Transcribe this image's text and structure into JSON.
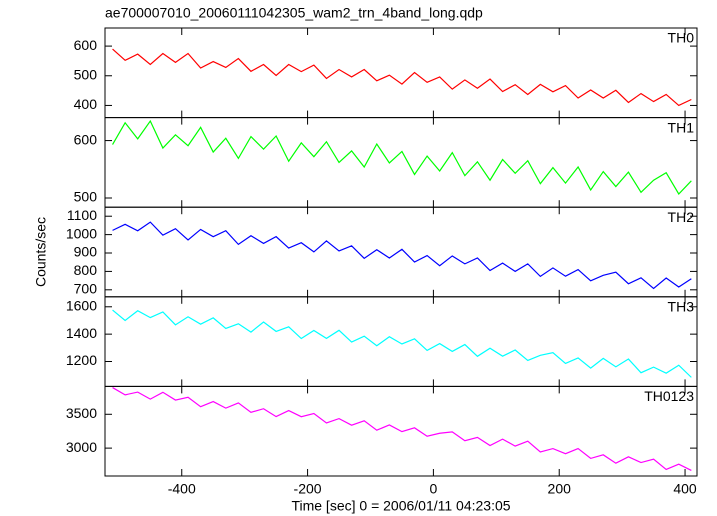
{
  "title": "ae700007010_20060111042305_wam2_trn_4band_long.qdp",
  "ylabel": "Counts/sec",
  "xlabel": "Time [sec] 0 = 2006/01/11 04:23:05",
  "chart_data": [
    {
      "type": "line",
      "label": "TH0",
      "color": "#ff0000",
      "x": [
        -510,
        -490,
        -470,
        -450,
        -430,
        -410,
        -390,
        -370,
        -350,
        -330,
        -310,
        -290,
        -270,
        -250,
        -230,
        -210,
        -190,
        -170,
        -150,
        -130,
        -110,
        -90,
        -70,
        -50,
        -30,
        -10,
        10,
        30,
        50,
        70,
        90,
        110,
        130,
        150,
        170,
        190,
        210,
        230,
        250,
        270,
        290,
        310,
        330,
        350,
        370,
        390,
        410
      ],
      "values": [
        590,
        552,
        573,
        538,
        575,
        545,
        575,
        526,
        548,
        528,
        558,
        515,
        538,
        501,
        538,
        514,
        536,
        491,
        521,
        496,
        521,
        483,
        502,
        472,
        511,
        478,
        496,
        455,
        486,
        458,
        489,
        447,
        470,
        437,
        471,
        446,
        467,
        425,
        452,
        425,
        451,
        410,
        440,
        413,
        437,
        400,
        420
      ],
      "xlim": [
        -522,
        419
      ],
      "xticks": [
        -400,
        -200,
        0,
        200,
        400
      ],
      "ylim": [
        359,
        661
      ],
      "yticks": [
        400,
        500,
        600
      ]
    },
    {
      "type": "line",
      "label": "TH1",
      "color": "#00ff00",
      "x": [
        -510,
        -490,
        -470,
        -450,
        -430,
        -410,
        -390,
        -370,
        -350,
        -330,
        -310,
        -290,
        -270,
        -250,
        -230,
        -210,
        -190,
        -170,
        -150,
        -130,
        -110,
        -90,
        -70,
        -50,
        -30,
        -10,
        10,
        30,
        50,
        70,
        90,
        110,
        130,
        150,
        170,
        190,
        210,
        230,
        250,
        270,
        290,
        310,
        330,
        350,
        370,
        390,
        410
      ],
      "values": [
        593,
        631,
        603,
        634,
        587,
        610,
        591,
        623,
        580,
        604,
        569,
        607,
        585,
        608,
        564,
        596,
        572,
        598,
        562,
        582,
        554,
        594,
        561,
        581,
        541,
        573,
        547,
        579,
        539,
        563,
        531,
        567,
        543,
        565,
        525,
        553,
        526,
        554,
        514,
        546,
        520,
        545,
        510,
        531,
        544,
        507,
        530
      ],
      "xlim": [
        -522,
        419
      ],
      "xticks": [
        -400,
        -200,
        0,
        200,
        400
      ],
      "ylim": [
        484,
        640
      ],
      "yticks": [
        500,
        600
      ]
    },
    {
      "type": "line",
      "label": "TH2",
      "color": "#0000ff",
      "x": [
        -510,
        -490,
        -470,
        -450,
        -430,
        -410,
        -390,
        -370,
        -350,
        -330,
        -310,
        -290,
        -270,
        -250,
        -230,
        -210,
        -190,
        -170,
        -150,
        -130,
        -110,
        -90,
        -70,
        -50,
        -30,
        -10,
        10,
        30,
        50,
        70,
        90,
        110,
        130,
        150,
        170,
        190,
        210,
        230,
        250,
        270,
        290,
        310,
        330,
        350,
        370,
        390,
        410
      ],
      "values": [
        1023,
        1056,
        1021,
        1068,
        997,
        1032,
        971,
        1028,
        989,
        1021,
        947,
        994,
        952,
        989,
        927,
        956,
        906,
        966,
        911,
        939,
        871,
        918,
        873,
        920,
        851,
        886,
        831,
        884,
        841,
        873,
        805,
        845,
        800,
        841,
        773,
        819,
        774,
        810,
        749,
        779,
        796,
        733,
        765,
        707,
        764,
        715,
        760
      ],
      "xlim": [
        -522,
        419
      ],
      "xticks": [
        -400,
        -200,
        0,
        200,
        400
      ],
      "ylim": [
        662,
        1149
      ],
      "yticks": [
        700,
        800,
        900,
        1000,
        1100
      ]
    },
    {
      "type": "line",
      "label": "TH3",
      "color": "#00ffff",
      "x": [
        -510,
        -490,
        -470,
        -450,
        -430,
        -410,
        -390,
        -370,
        -350,
        -330,
        -310,
        -290,
        -270,
        -250,
        -230,
        -210,
        -190,
        -170,
        -150,
        -130,
        -110,
        -90,
        -70,
        -50,
        -30,
        -10,
        10,
        30,
        50,
        70,
        90,
        110,
        130,
        150,
        170,
        190,
        210,
        230,
        250,
        270,
        290,
        310,
        330,
        350,
        370,
        390,
        410
      ],
      "values": [
        1576,
        1500,
        1571,
        1521,
        1562,
        1468,
        1527,
        1473,
        1519,
        1442,
        1476,
        1415,
        1489,
        1420,
        1454,
        1368,
        1427,
        1369,
        1428,
        1342,
        1385,
        1315,
        1381,
        1328,
        1366,
        1281,
        1331,
        1274,
        1324,
        1238,
        1297,
        1239,
        1284,
        1208,
        1245,
        1265,
        1186,
        1226,
        1152,
        1223,
        1161,
        1218,
        1118,
        1159,
        1115,
        1173,
        1084
      ],
      "xlim": [
        -522,
        419
      ],
      "xticks": [
        -400,
        -200,
        0,
        200,
        400
      ],
      "ylim": [
        1018,
        1673
      ],
      "yticks": [
        1200,
        1400,
        1600
      ]
    },
    {
      "type": "line",
      "label": "TH0123",
      "color": "#ff00ff",
      "x": [
        -510,
        -490,
        -470,
        -450,
        -430,
        -410,
        -390,
        -370,
        -350,
        -330,
        -310,
        -290,
        -270,
        -250,
        -230,
        -210,
        -190,
        -170,
        -150,
        -130,
        -110,
        -90,
        -70,
        -50,
        -30,
        -10,
        10,
        30,
        50,
        70,
        90,
        110,
        130,
        150,
        170,
        190,
        210,
        230,
        250,
        270,
        290,
        310,
        330,
        350,
        370,
        390,
        410
      ],
      "values": [
        3895,
        3787,
        3828,
        3724,
        3825,
        3710,
        3751,
        3612,
        3688,
        3591,
        3668,
        3529,
        3582,
        3466,
        3555,
        3464,
        3511,
        3372,
        3436,
        3339,
        3404,
        3265,
        3342,
        3244,
        3300,
        3176,
        3220,
        3240,
        3109,
        3159,
        3038,
        3133,
        3030,
        3103,
        2943,
        2993,
        2917,
        2994,
        2848,
        2901,
        2777,
        2872,
        2787,
        2836,
        2685,
        2762,
        2670
      ],
      "xlim": [
        -522,
        419
      ],
      "xticks": [
        -400,
        -200,
        0,
        200,
        400
      ],
      "ylim": [
        2588,
        3912
      ],
      "yticks": [
        3000,
        3500
      ]
    }
  ]
}
